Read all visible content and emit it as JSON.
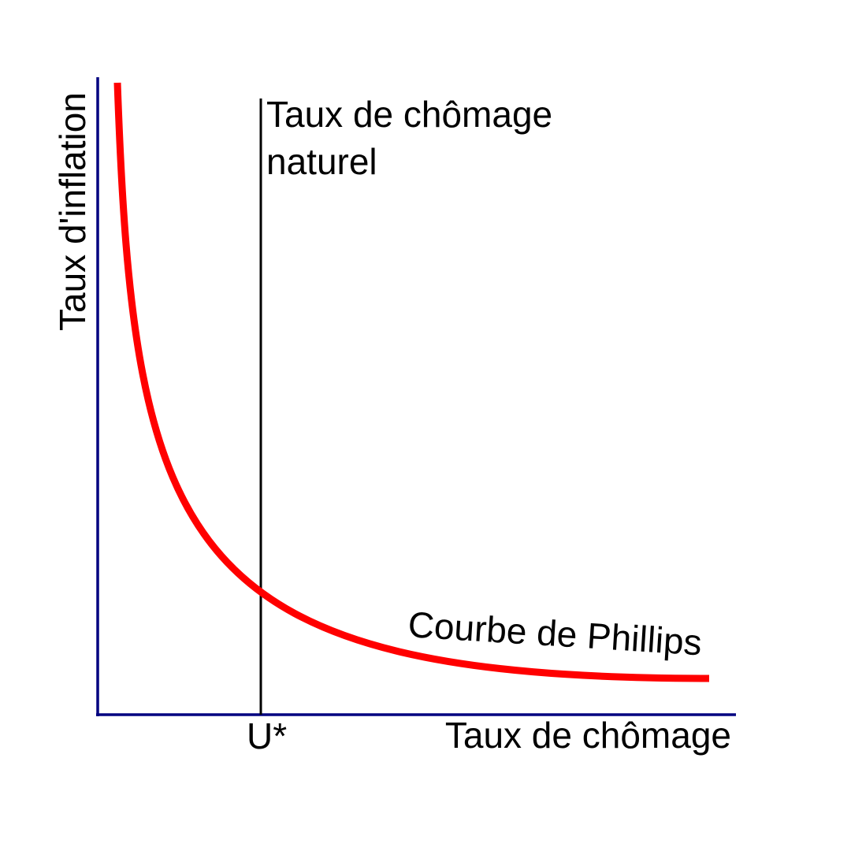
{
  "diagram": {
    "y_axis_label": "Taux d'inflation",
    "x_axis_label": "Taux de chômage",
    "natural_rate_label_line1": "Taux de chômage",
    "natural_rate_label_line2": "naturel",
    "natural_rate_tick_label": "U*",
    "curve_label": "Courbe de Phillips"
  },
  "colors": {
    "axis": "#000080",
    "curve": "#ff0000",
    "natural_rate_line": "#000000",
    "text": "#000000",
    "background": "#ffffff"
  }
}
